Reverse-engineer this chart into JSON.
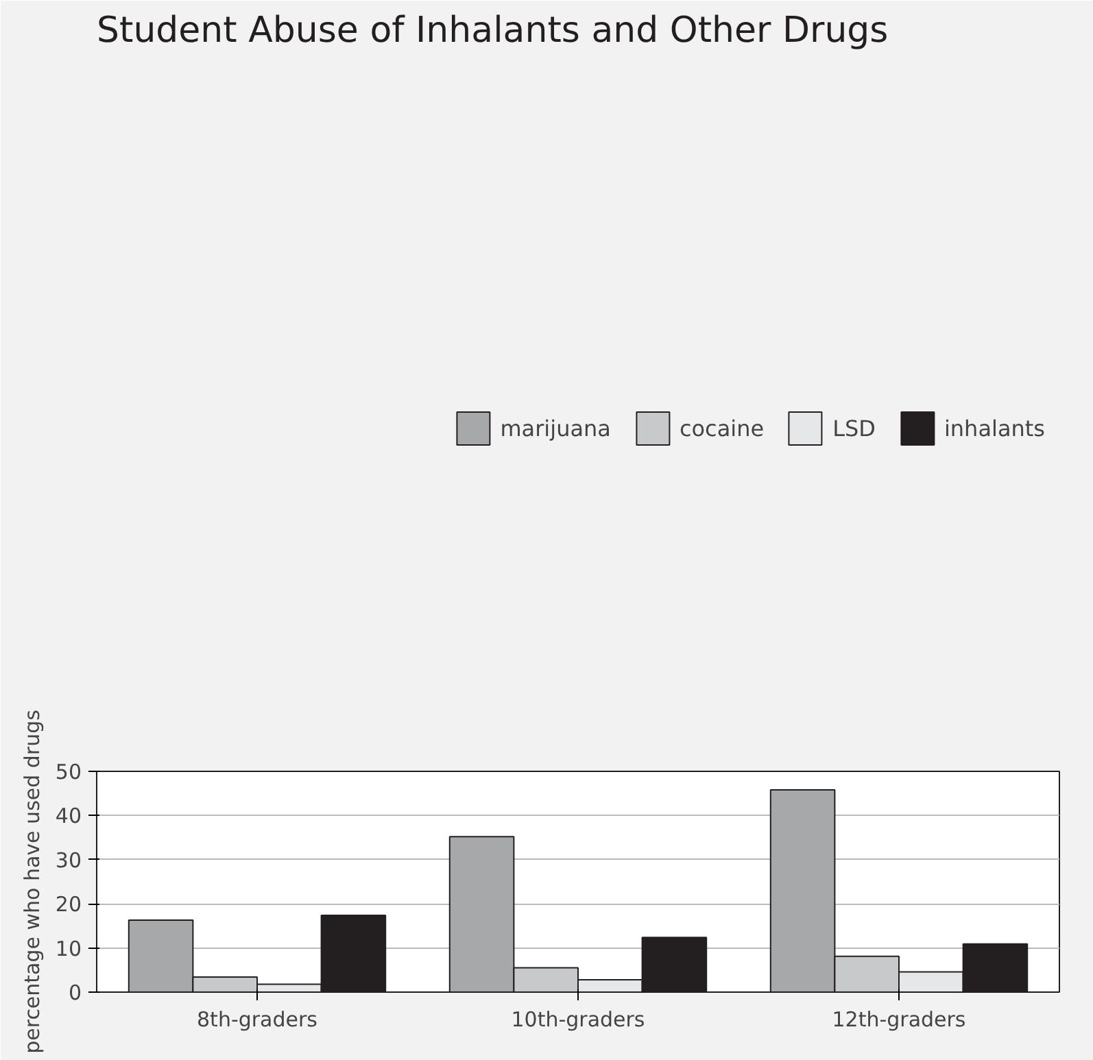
{
  "chart_data": {
    "type": "bar",
    "title": "Student Abuse of Inhalants and Other Drugs",
    "ylabel": "percentage who have used drugs",
    "categories": [
      "8th-graders",
      "10th-graders",
      "12th-graders"
    ],
    "series": [
      {
        "name": "marijuana",
        "color": "#a7a8aa",
        "values": [
          16.3,
          35.2,
          45.8
        ]
      },
      {
        "name": "cocaine",
        "color": "#c8c9cb",
        "values": [
          3.4,
          5.5,
          8.1
        ]
      },
      {
        "name": "LSD",
        "color": "#e6e7e8",
        "values": [
          1.8,
          2.8,
          4.6
        ]
      },
      {
        "name": "inhalants",
        "color": "#231f20",
        "values": [
          17.4,
          12.4,
          10.9
        ]
      }
    ],
    "ylim": [
      0,
      50
    ],
    "yticks": [
      0,
      10,
      20,
      30,
      40,
      50
    ],
    "grid": "y",
    "legend": "top right"
  }
}
